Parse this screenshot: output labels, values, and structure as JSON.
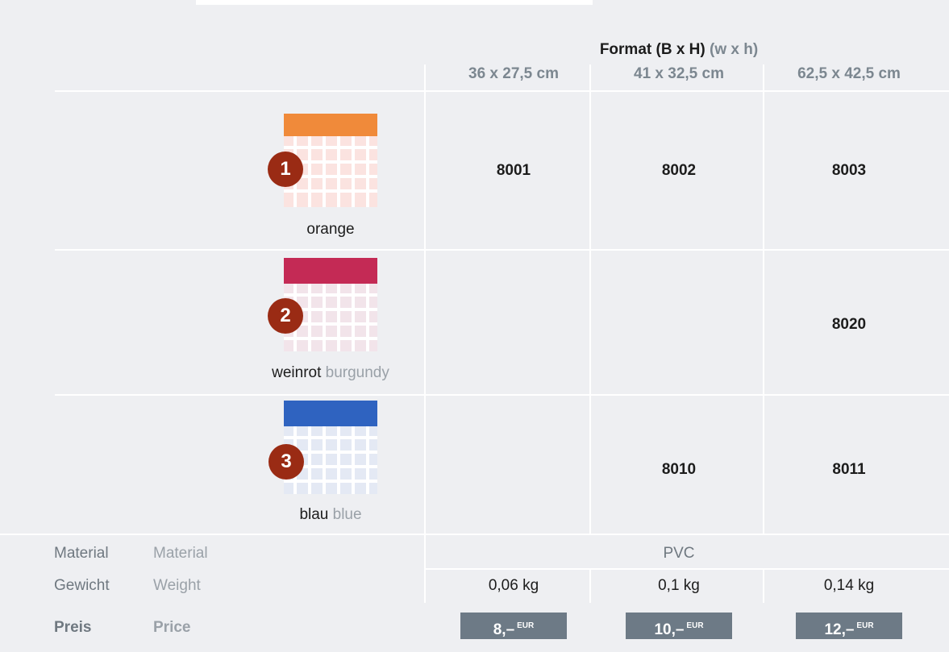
{
  "header": {
    "format": "Format (B x H)",
    "format_en": "(w x h)",
    "sizes": [
      "36 x 27,5 cm",
      "41 x 32,5 cm",
      "62,5 x 42,5 cm"
    ]
  },
  "rows": [
    {
      "badge": "1",
      "color": "orange",
      "cells": [
        "8001",
        "8002",
        "8003"
      ]
    },
    {
      "badge": "2",
      "color": "weinrot",
      "color_en": "burgundy",
      "cells": [
        null,
        null,
        "8020"
      ]
    },
    {
      "badge": "3",
      "color": "blau",
      "color_en": "blue",
      "cells": [
        null,
        "8010",
        "8011"
      ]
    }
  ],
  "specs": {
    "material": {
      "label": "Material",
      "label_en": "Material",
      "value": "PVC"
    },
    "weight": {
      "label": "Gewicht",
      "label_en": "Weight",
      "values": [
        "0,06 kg",
        "0,1 kg",
        "0,14 kg"
      ]
    },
    "price": {
      "label": "Preis",
      "label_en": "Price",
      "values": [
        "8,–",
        "10,–",
        "12,–"
      ],
      "currency": "EUR"
    }
  }
}
